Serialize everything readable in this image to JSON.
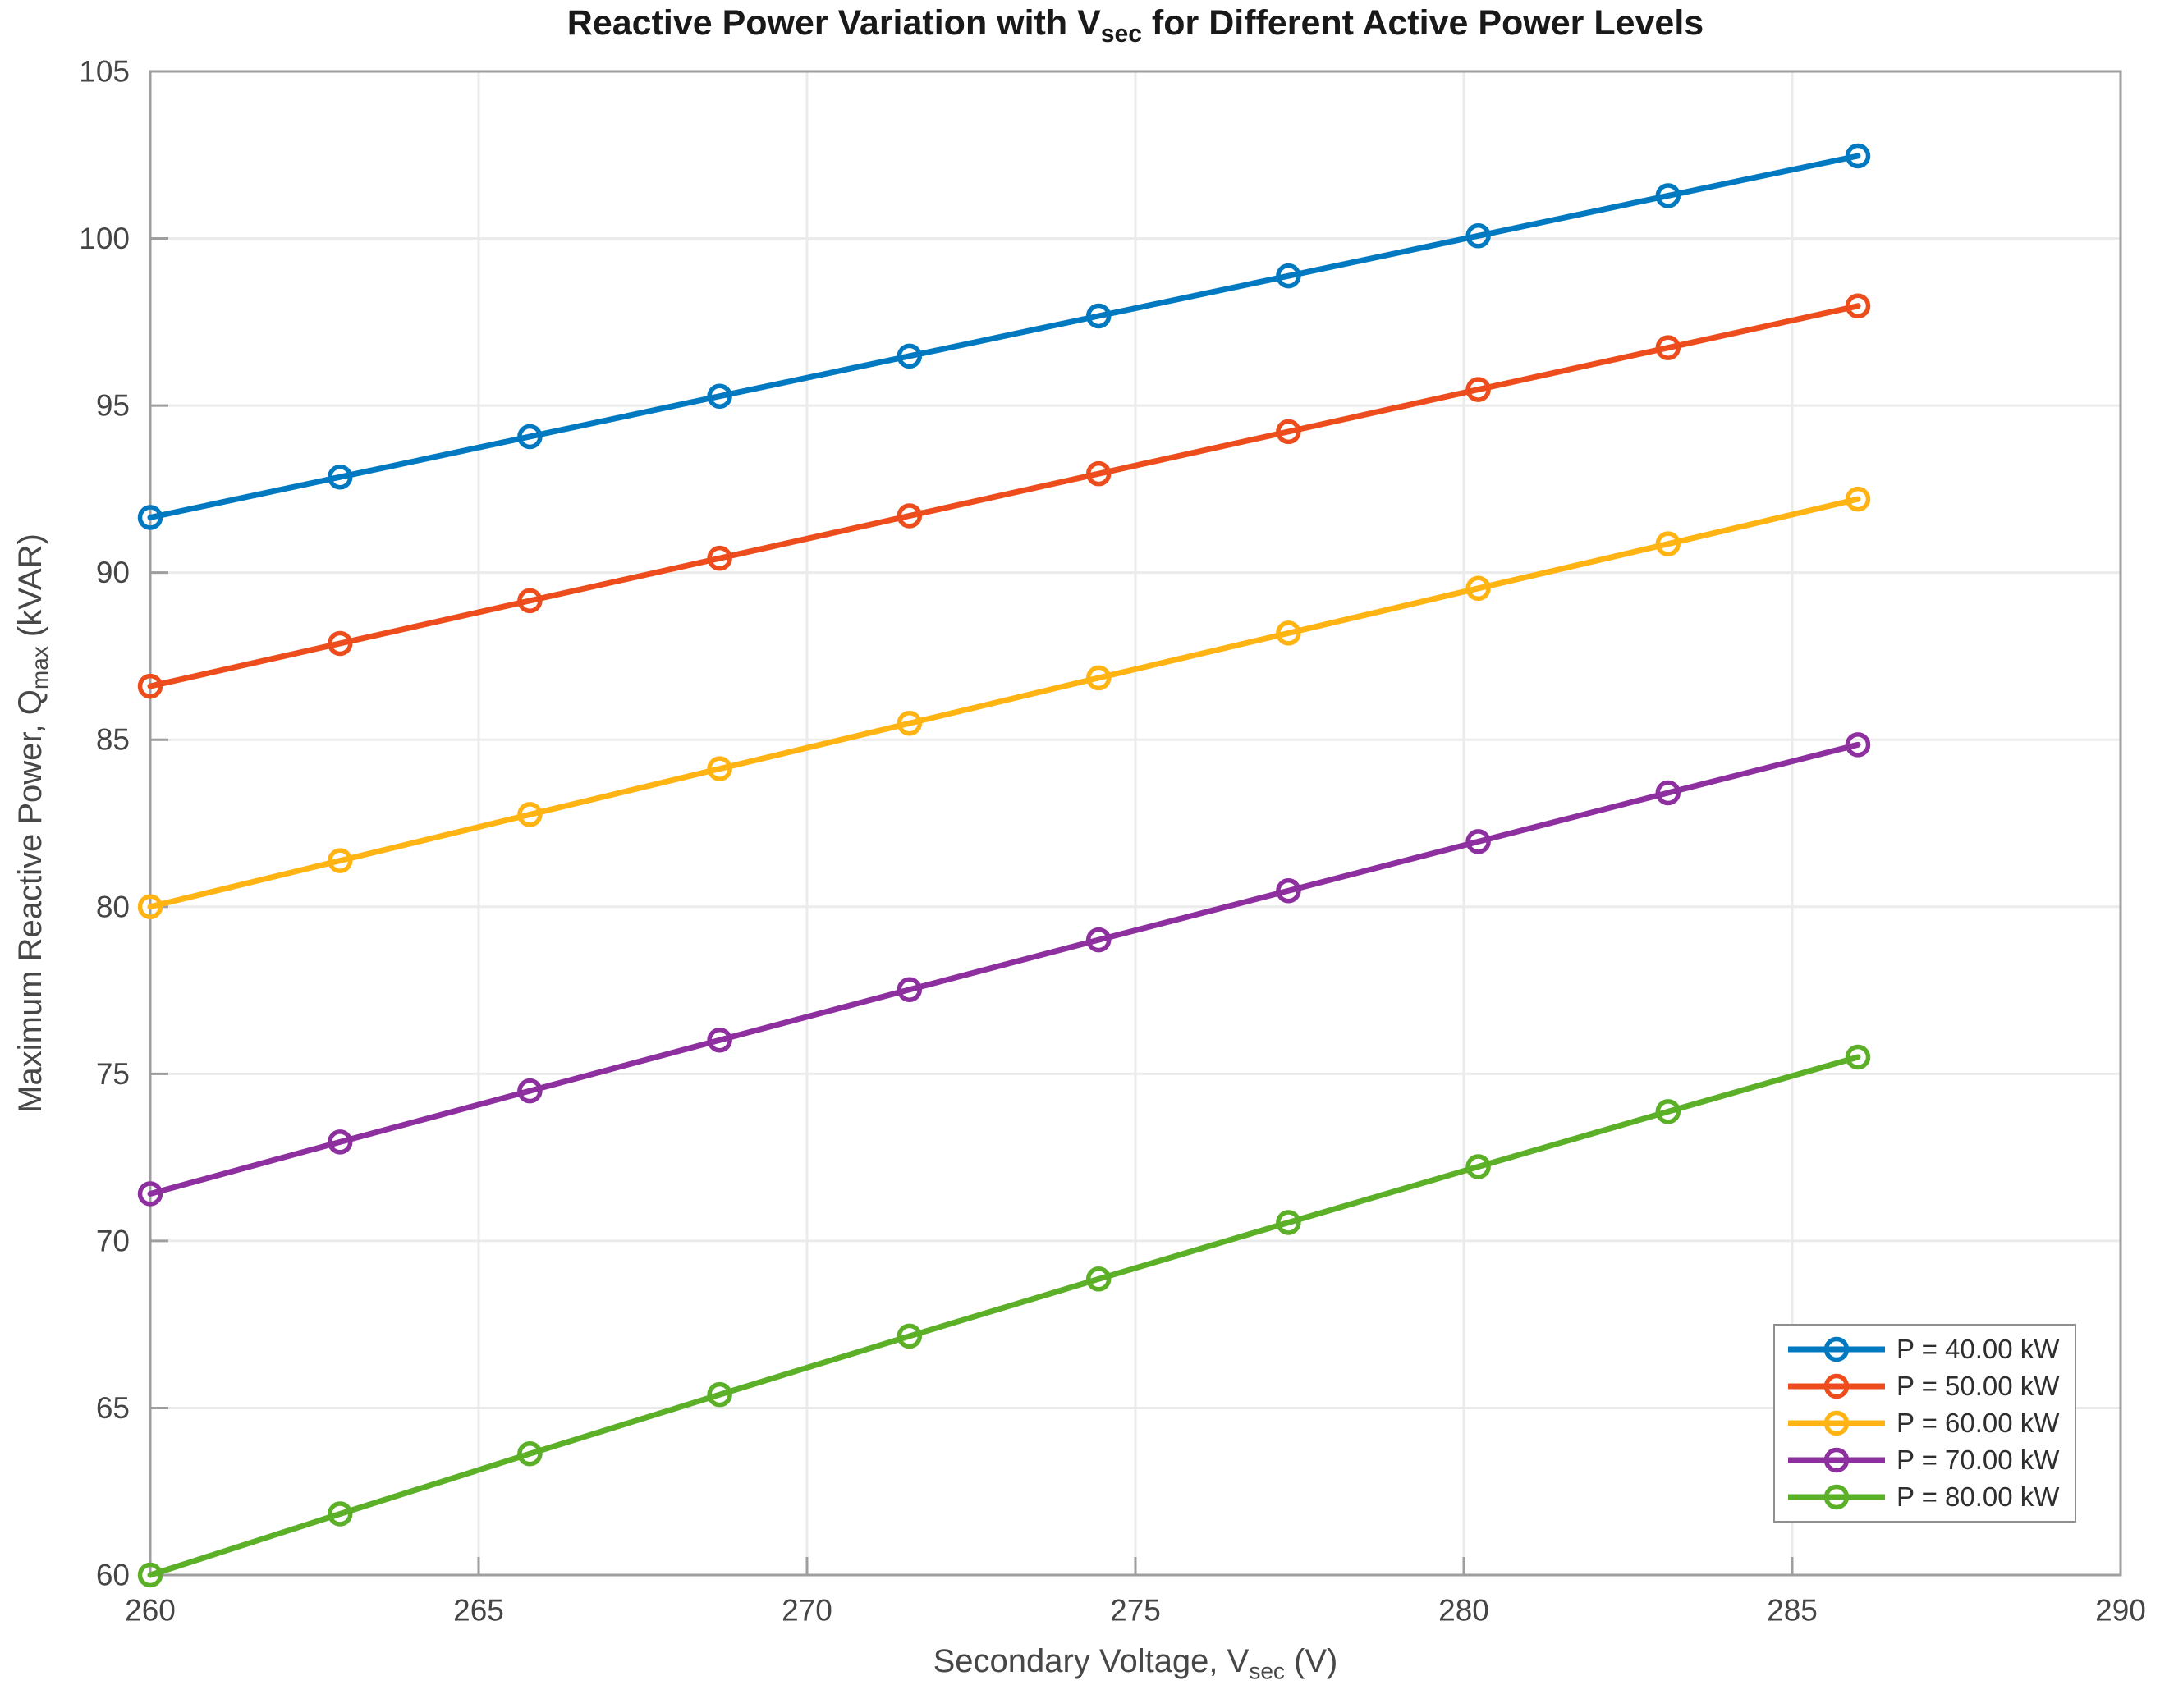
{
  "figure": {
    "title": {
      "pre": "Reactive Power Variation with V",
      "sub": "sec",
      "post": " for Different Active Power Levels"
    },
    "xlabel": {
      "pre": "Secondary Voltage, V",
      "sub": "sec",
      "post": " (V)"
    },
    "ylabel": {
      "pre": "Maximum Reactive Power, Q",
      "sub": "max",
      "post": " (kVAR)"
    }
  },
  "chart_data": {
    "type": "line",
    "title": "Reactive Power Variation with V_sec for Different Active Power Levels",
    "xlabel": "Secondary Voltage, V_sec (V)",
    "ylabel": "Maximum Reactive Power, Q_max (kVAR)",
    "xlim": [
      260,
      290
    ],
    "ylim": [
      60,
      105
    ],
    "xticks": [
      260,
      265,
      270,
      275,
      280,
      285,
      290
    ],
    "yticks": [
      60,
      65,
      70,
      75,
      80,
      85,
      90,
      95,
      100,
      105
    ],
    "grid": true,
    "legend_position": "lower right",
    "marker": "open-circle",
    "grid_color": "#ebebeb",
    "axis_color": "#9e9e9e",
    "x": [
      260,
      262.89,
      265.78,
      268.67,
      271.56,
      274.44,
      277.33,
      280.22,
      283.11,
      286
    ],
    "series": [
      {
        "name": "P = 40.00 kW",
        "color": "#0079C1",
        "values": [
          91.65,
          92.86,
          94.07,
          95.28,
          96.48,
          97.68,
          98.88,
          100.08,
          101.28,
          102.47
        ]
      },
      {
        "name": "P = 50.00 kW",
        "color": "#ED4C1C",
        "values": [
          86.6,
          87.88,
          89.16,
          90.43,
          91.7,
          92.96,
          94.22,
          95.48,
          96.73,
          97.98
        ]
      },
      {
        "name": "P = 60.00 kW",
        "color": "#FFB414",
        "values": [
          80.0,
          81.38,
          82.76,
          84.13,
          85.49,
          86.85,
          88.19,
          89.53,
          90.86,
          92.2
        ]
      },
      {
        "name": "P = 70.00 kW",
        "color": "#8E2FA0",
        "values": [
          71.41,
          72.96,
          74.49,
          76.01,
          77.52,
          79.01,
          80.48,
          81.95,
          83.41,
          84.85
        ]
      },
      {
        "name": "P = 80.00 kW",
        "color": "#5BB028",
        "values": [
          60.0,
          61.83,
          63.63,
          65.4,
          67.15,
          68.86,
          70.55,
          72.22,
          73.87,
          75.5
        ]
      }
    ]
  }
}
